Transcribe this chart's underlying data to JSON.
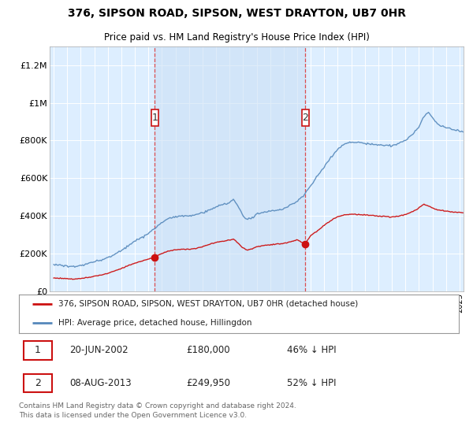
{
  "title": "376, SIPSON ROAD, SIPSON, WEST DRAYTON, UB7 0HR",
  "subtitle": "Price paid vs. HM Land Registry's House Price Index (HPI)",
  "ylabel_ticks": [
    "£0",
    "£200K",
    "£400K",
    "£600K",
    "£800K",
    "£1M",
    "£1.2M"
  ],
  "ytick_values": [
    0,
    200000,
    400000,
    600000,
    800000,
    1000000,
    1200000
  ],
  "ylim": [
    0,
    1300000
  ],
  "xlim_start": 1994.7,
  "xlim_end": 2025.3,
  "background_color": "#ffffff",
  "plot_bg_color": "#ddeeff",
  "grid_color": "#ffffff",
  "hpi_color": "#5588bb",
  "price_color": "#cc1111",
  "shade_color": "#ddeeff",
  "sale1_date": 2002.47,
  "sale1_price": 180000,
  "sale2_date": 2013.6,
  "sale2_price": 249950,
  "legend_line1": "376, SIPSON ROAD, SIPSON, WEST DRAYTON, UB7 0HR (detached house)",
  "legend_line2": "HPI: Average price, detached house, Hillingdon",
  "note1_date": "20-JUN-2002",
  "note1_price": "£180,000",
  "note1_hpi": "46% ↓ HPI",
  "note2_date": "08-AUG-2013",
  "note2_price": "£249,950",
  "note2_hpi": "52% ↓ HPI",
  "footer": "Contains HM Land Registry data © Crown copyright and database right 2024.\nThis data is licensed under the Open Government Licence v3.0."
}
